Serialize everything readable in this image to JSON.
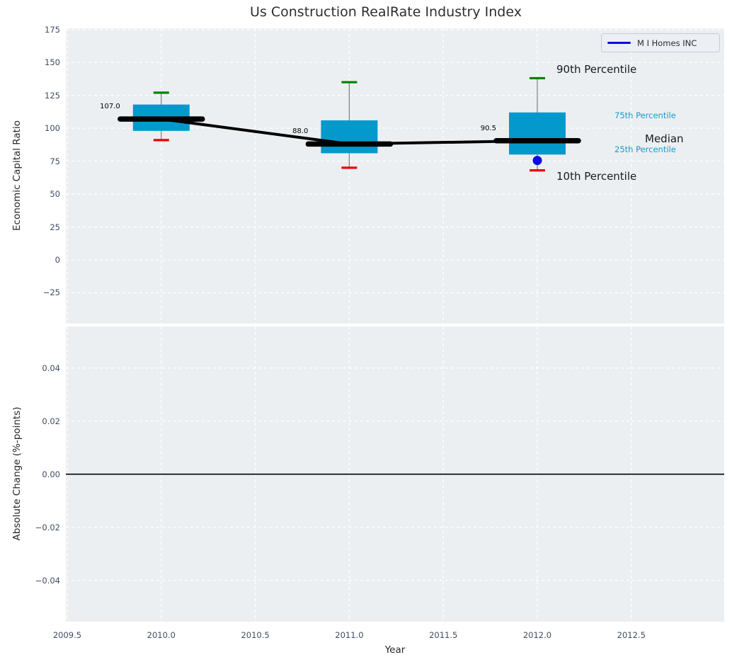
{
  "title": "Us Construction RealRate Industry Index",
  "legend": {
    "label": "M I Homes INC",
    "line_color": "#0d0de0"
  },
  "colors": {
    "panel_bg": "#eceff1",
    "grid": "#ffffff",
    "box_fill": "#0399cd",
    "p90_cap": "#008000",
    "p10_cap": "#ee0000",
    "whisker": "#7f7f7f",
    "median_line": "#000000",
    "company_marker": "#0d0de0",
    "zero_line": "#000000",
    "tick_text": "#3f4c63",
    "percentile_label": "#139bce"
  },
  "chart_data": {
    "type": "boxplot-timeseries",
    "title": "Us Construction RealRate Industry Index",
    "x": {
      "label": "Year",
      "lim": [
        2009.4925,
        2012.994
      ],
      "ticks": {
        "values": [
          2009.5,
          2010.0,
          2010.5,
          2011.0,
          2011.5,
          2012.0,
          2012.5
        ],
        "labels": [
          "2009.5",
          "2010.0",
          "2010.5",
          "2011.0",
          "2011.5",
          "2012.0",
          "2012.5"
        ]
      }
    },
    "top_panel": {
      "ylabel": "Economic Capital Ratio",
      "ylim": [
        -48.4,
        175.9
      ],
      "yticks": {
        "values": [
          175,
          150,
          125,
          100,
          75,
          50,
          25,
          0,
          -25
        ],
        "labels": [
          "175",
          "150",
          "125",
          "100",
          "75",
          "50",
          "25",
          "0",
          "−25"
        ]
      },
      "groups": [
        {
          "year": 2010,
          "p10": 91,
          "p25": 98,
          "median": 107.0,
          "p75": 118,
          "p90": 127,
          "label": "107.0"
        },
        {
          "year": 2011,
          "p10": 70,
          "p25": 81,
          "median": 88.0,
          "p75": 106,
          "p90": 135,
          "label": "88.0"
        },
        {
          "year": 2012,
          "p10": 68,
          "p25": 80,
          "median": 90.5,
          "p75": 112,
          "p90": 138,
          "label": "90.5",
          "company_value": 75.5
        }
      ],
      "median_trend": [
        [
          2010,
          107.0
        ],
        [
          2011,
          88.0
        ],
        [
          2012,
          90.5
        ]
      ],
      "annotations": [
        {
          "text": "90th Percentile",
          "style": "large",
          "anchor": "p90"
        },
        {
          "text": "75th Percentile",
          "style": "small",
          "anchor": "p75"
        },
        {
          "text": "Median",
          "style": "large",
          "anchor": "median"
        },
        {
          "text": "25th Percentile",
          "style": "small",
          "anchor": "p25"
        },
        {
          "text": "10th Percentile",
          "style": "large",
          "anchor": "p10"
        }
      ]
    },
    "bottom_panel": {
      "ylabel": "Absolute Change (%-points)",
      "ylim": [
        -0.0556,
        0.0557
      ],
      "yticks": {
        "values": [
          0.04,
          0.02,
          0.0,
          -0.02,
          -0.04
        ],
        "labels": [
          "0.04",
          "0.02",
          "0.00",
          "−0.02",
          "−0.04"
        ]
      },
      "zero_line": 0.0
    }
  }
}
